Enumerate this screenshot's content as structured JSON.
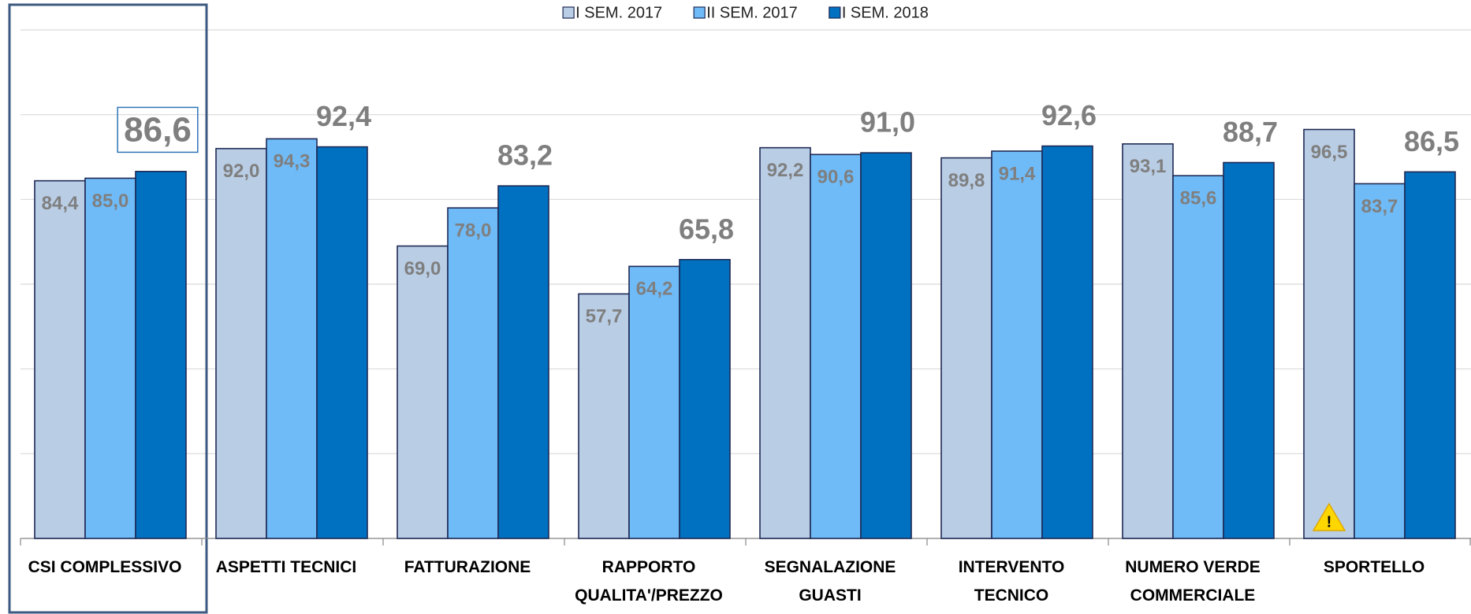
{
  "chart_data": {
    "type": "bar",
    "categories": [
      "CSI COMPLESSIVO",
      "ASPETTI TECNICI",
      "FATTURAZIONE",
      "RAPPORTO\nQUALITA'/PREZZO",
      "SEGNALAZIONE\nGUASTI",
      "INTERVENTO\nTECNICO",
      "NUMERO VERDE\nCOMMERCIALE",
      "SPORTELLO"
    ],
    "series": [
      {
        "name": "I SEM. 2017",
        "color": "#b9cde5",
        "values": [
          84.4,
          92.0,
          69.0,
          57.7,
          92.2,
          89.8,
          93.1,
          96.5
        ],
        "value_labels": [
          "84,4",
          "92,0",
          "69,0",
          "57,7",
          "92,2",
          "89,8",
          "93,1",
          "96,5"
        ]
      },
      {
        "name": "II SEM. 2017",
        "color": "#6fbbf8",
        "values": [
          85.0,
          94.3,
          78.0,
          64.2,
          90.6,
          91.4,
          85.6,
          83.7
        ],
        "value_labels": [
          "85,0",
          "94,3",
          "78,0",
          "64,2",
          "90,6",
          "91,4",
          "85,6",
          "83,7"
        ]
      },
      {
        "name": "I SEM. 2018",
        "color": "#0070c0",
        "values": [
          86.6,
          92.4,
          83.2,
          65.8,
          91.0,
          92.6,
          88.7,
          86.5
        ],
        "value_labels": [
          "86,6",
          "92,4",
          "83,2",
          "65,8",
          "91,0",
          "92,6",
          "88,7",
          "86,5"
        ]
      }
    ],
    "ylim": [
      0,
      120
    ],
    "yticks": [
      0,
      20,
      40,
      60,
      80,
      100,
      120
    ],
    "grid": true,
    "legend": "top"
  }
}
